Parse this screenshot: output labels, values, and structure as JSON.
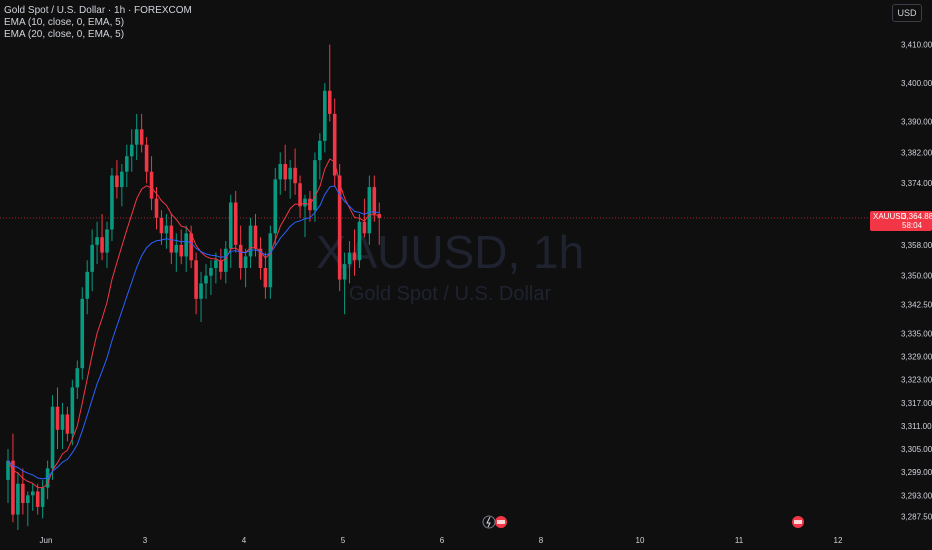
{
  "legend": {
    "title": "Gold Spot / U.S. Dollar · 1h · FOREXCOM",
    "ema1": "EMA (10, close, 0, EMA, 5)",
    "ema2": "EMA (20, close, 0, EMA, 5)"
  },
  "currency_button": "USD",
  "watermark": {
    "symbol": "XAUUSD, 1h",
    "name": "Gold Spot / U.S. Dollar"
  },
  "last_price": {
    "symbol": "XAUUSD",
    "value": "3,364.88",
    "countdown": "58:04"
  },
  "colors": {
    "background": "#0f0f0f",
    "up": "#089981",
    "down": "#f23645",
    "ema10": "#f23645",
    "ema20": "#2962ff"
  },
  "icons": [
    "lightning-icon",
    "flag-event-icon"
  ],
  "chart_data": {
    "type": "candlestick",
    "timeframe": "1h",
    "x_ticks": [
      {
        "label": "Jun",
        "i": 0
      },
      {
        "label": "3",
        "i": 20
      },
      {
        "label": "4",
        "i": 40
      },
      {
        "label": "5",
        "i": 60
      },
      {
        "label": "6",
        "i": 80
      },
      {
        "label": "8",
        "i": 100
      },
      {
        "label": "10",
        "i": 120
      },
      {
        "label": "11",
        "i": 140
      },
      {
        "label": "12",
        "i": 160
      }
    ],
    "y_ticks": [
      "3,410.00",
      "3,400.00",
      "3,390.00",
      "3,382.00",
      "3,374.00",
      "3,366.00",
      "3,358.00",
      "3,350.00",
      "3,342.50",
      "3,335.00",
      "3,329.00",
      "3,323.00",
      "3,317.00",
      "3,311.00",
      "3,305.00",
      "3,299.00",
      "3,293.00",
      "3,287.50"
    ],
    "ylim": [
      3284,
      3420
    ],
    "candles": [
      [
        3297,
        3305,
        3291,
        3302
      ],
      [
        3302,
        3309,
        3286,
        3288
      ],
      [
        3288,
        3299,
        3284,
        3296
      ],
      [
        3296,
        3300,
        3288,
        3291
      ],
      [
        3291,
        3294,
        3285,
        3293
      ],
      [
        3293,
        3296,
        3289,
        3294
      ],
      [
        3294,
        3296,
        3288,
        3290
      ],
      [
        3290,
        3297,
        3287,
        3295
      ],
      [
        3295,
        3302,
        3292,
        3300
      ],
      [
        3300,
        3319,
        3297,
        3316
      ],
      [
        3316,
        3321,
        3305,
        3310
      ],
      [
        3310,
        3317,
        3305,
        3314
      ],
      [
        3314,
        3316,
        3307,
        3309
      ],
      [
        3309,
        3323,
        3306,
        3321
      ],
      [
        3321,
        3328,
        3318,
        3326
      ],
      [
        3326,
        3347,
        3323,
        3344
      ],
      [
        3344,
        3354,
        3340,
        3351
      ],
      [
        3351,
        3362,
        3346,
        3358
      ],
      [
        3358,
        3364,
        3353,
        3360
      ],
      [
        3360,
        3366,
        3354,
        3356
      ],
      [
        3356,
        3364,
        3352,
        3362
      ],
      [
        3362,
        3378,
        3359,
        3376
      ],
      [
        3376,
        3380,
        3370,
        3373
      ],
      [
        3373,
        3379,
        3368,
        3377
      ],
      [
        3377,
        3384,
        3373,
        3381
      ],
      [
        3381,
        3388,
        3377,
        3384
      ],
      [
        3384,
        3392,
        3380,
        3388
      ],
      [
        3388,
        3392,
        3382,
        3384
      ],
      [
        3384,
        3386,
        3374,
        3377
      ],
      [
        3377,
        3381,
        3367,
        3370
      ],
      [
        3370,
        3373,
        3362,
        3365
      ],
      [
        3365,
        3367,
        3358,
        3361
      ],
      [
        3361,
        3366,
        3357,
        3363
      ],
      [
        3363,
        3366,
        3353,
        3356
      ],
      [
        3356,
        3361,
        3351,
        3358
      ],
      [
        3358,
        3362,
        3353,
        3355
      ],
      [
        3355,
        3363,
        3351,
        3361
      ],
      [
        3361,
        3363,
        3352,
        3354
      ],
      [
        3354,
        3356,
        3340,
        3344
      ],
      [
        3344,
        3351,
        3338,
        3348
      ],
      [
        3348,
        3353,
        3344,
        3350
      ],
      [
        3350,
        3354,
        3345,
        3352
      ],
      [
        3352,
        3356,
        3348,
        3354
      ],
      [
        3354,
        3357,
        3349,
        3351
      ],
      [
        3351,
        3359,
        3348,
        3357
      ],
      [
        3357,
        3371,
        3352,
        3369
      ],
      [
        3369,
        3372,
        3356,
        3358
      ],
      [
        3358,
        3363,
        3349,
        3352
      ],
      [
        3352,
        3357,
        3347,
        3355
      ],
      [
        3355,
        3365,
        3352,
        3363
      ],
      [
        3363,
        3366,
        3355,
        3357
      ],
      [
        3357,
        3360,
        3349,
        3352
      ],
      [
        3352,
        3356,
        3344,
        3347
      ],
      [
        3347,
        3363,
        3344,
        3361
      ],
      [
        3361,
        3378,
        3358,
        3375
      ],
      [
        3375,
        3382,
        3371,
        3379
      ],
      [
        3379,
        3384,
        3372,
        3375
      ],
      [
        3375,
        3380,
        3370,
        3378
      ],
      [
        3378,
        3383,
        3371,
        3374
      ],
      [
        3374,
        3376,
        3365,
        3368
      ],
      [
        3368,
        3371,
        3360,
        3370
      ],
      [
        3370,
        3372,
        3364,
        3367
      ],
      [
        3367,
        3382,
        3364,
        3380
      ],
      [
        3380,
        3387,
        3375,
        3385
      ],
      [
        3385,
        3400,
        3382,
        3398
      ],
      [
        3398,
        3410,
        3390,
        3392
      ],
      [
        3392,
        3396,
        3373,
        3376
      ],
      [
        3376,
        3379,
        3346,
        3349
      ],
      [
        3349,
        3356,
        3340,
        3353
      ],
      [
        3353,
        3359,
        3348,
        3356
      ],
      [
        3356,
        3362,
        3350,
        3354
      ],
      [
        3354,
        3366,
        3352,
        3364
      ],
      [
        3364,
        3370,
        3360,
        3361
      ],
      [
        3361,
        3376,
        3358,
        3373
      ],
      [
        3373,
        3376,
        3364,
        3366
      ],
      [
        3366,
        3369,
        3358,
        3365
      ]
    ]
  }
}
